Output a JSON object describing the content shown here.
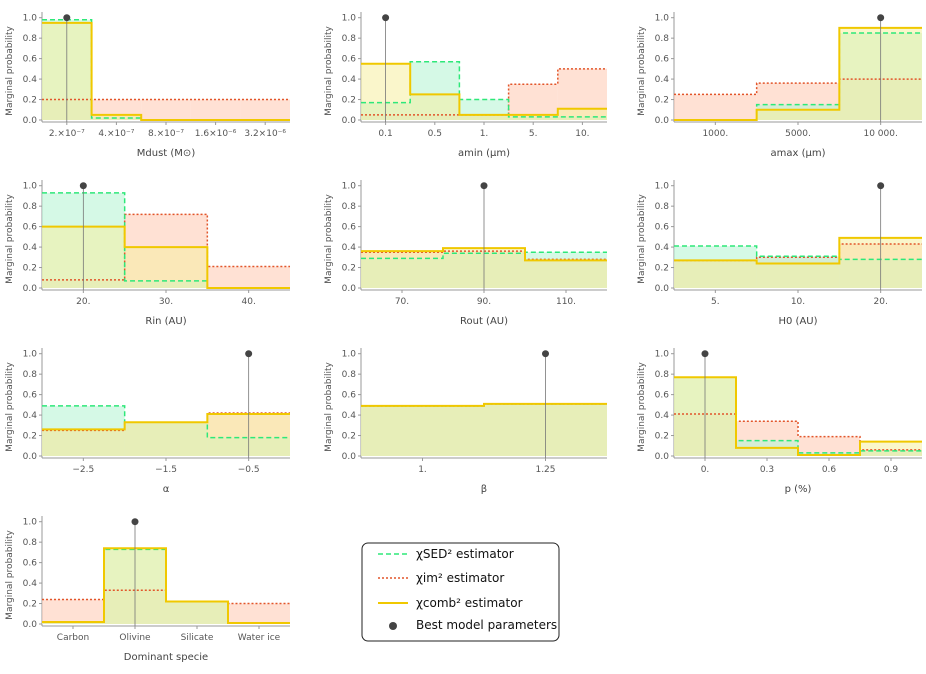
{
  "colors": {
    "sed_line": "#2ee879",
    "sed_fill": "#b9f5d6",
    "im_line": "#e2552a",
    "im_fill": "#ffcdb8",
    "comb_line": "#f0c800",
    "comb_fill": "#f6efa0",
    "best_point": "#444444",
    "axis": "#999999"
  },
  "legend": {
    "sed": "χSED² estimator",
    "im": "χim² estimator",
    "comb": "χcomb² estimator",
    "best": "Best model parameters"
  },
  "chart_data": [
    {
      "type": "bar",
      "ylabel": "Marginal probability",
      "xlabel": "Mdust (M⊙)",
      "xlim": [
        0,
        5
      ],
      "ylim": [
        0,
        1
      ],
      "ticks": [
        {
          "x": 0.5,
          "label": "2.×10⁻⁷"
        },
        {
          "x": 1.5,
          "label": "4.×10⁻⁷"
        },
        {
          "x": 2.5,
          "label": "8.×10⁻⁷"
        },
        {
          "x": 3.5,
          "label": "1.6×10⁻⁶"
        },
        {
          "x": 4.5,
          "label": "3.2×10⁻⁶"
        }
      ],
      "edges": [
        0,
        1,
        2,
        3,
        4,
        5
      ],
      "series": [
        {
          "name": "sed",
          "values": [
            0.98,
            0.02,
            0,
            0,
            0
          ]
        },
        {
          "name": "im",
          "values": [
            0.2,
            0.2,
            0.2,
            0.2,
            0.2
          ]
        },
        {
          "name": "comb",
          "values": [
            0.95,
            0.05,
            0,
            0,
            0
          ]
        }
      ],
      "best": 0.5
    },
    {
      "type": "bar",
      "ylabel": "Marginal probability",
      "xlabel": "amin (μm)",
      "xlim": [
        0,
        5
      ],
      "ylim": [
        0,
        1
      ],
      "ticks": [
        {
          "x": 0.5,
          "label": "0.1"
        },
        {
          "x": 1.5,
          "label": "0.5"
        },
        {
          "x": 2.5,
          "label": "1."
        },
        {
          "x": 3.5,
          "label": "5."
        },
        {
          "x": 4.5,
          "label": "10."
        }
      ],
      "edges": [
        0,
        1,
        2,
        3,
        4,
        5
      ],
      "series": [
        {
          "name": "sed",
          "values": [
            0.17,
            0.57,
            0.2,
            0.03,
            0.03
          ]
        },
        {
          "name": "im",
          "values": [
            0.05,
            0.05,
            0.05,
            0.35,
            0.5
          ]
        },
        {
          "name": "comb",
          "values": [
            0.55,
            0.25,
            0.05,
            0.05,
            0.11
          ]
        }
      ],
      "best": 0.5
    },
    {
      "type": "bar",
      "ylabel": "Marginal probability",
      "xlabel": "amax (μm)",
      "xlim": [
        0,
        3
      ],
      "ylim": [
        0,
        1
      ],
      "ticks": [
        {
          "x": 0.5,
          "label": "1000."
        },
        {
          "x": 1.5,
          "label": "5000."
        },
        {
          "x": 2.5,
          "label": "10 000."
        }
      ],
      "edges": [
        0,
        1,
        2,
        3
      ],
      "series": [
        {
          "name": "sed",
          "values": [
            0,
            0.15,
            0.85
          ]
        },
        {
          "name": "im",
          "values": [
            0.25,
            0.36,
            0.4
          ]
        },
        {
          "name": "comb",
          "values": [
            0,
            0.1,
            0.9
          ]
        }
      ],
      "best": 2.5
    },
    {
      "type": "bar",
      "ylabel": "Marginal probability",
      "xlabel": "Rin (AU)",
      "xlim": [
        15,
        45
      ],
      "ylim": [
        0,
        1
      ],
      "ticks": [
        {
          "x": 20,
          "label": "20."
        },
        {
          "x": 30,
          "label": "30."
        },
        {
          "x": 40,
          "label": "40."
        }
      ],
      "edges": [
        15,
        25,
        35,
        45
      ],
      "series": [
        {
          "name": "sed",
          "values": [
            0.93,
            0.07,
            0
          ]
        },
        {
          "name": "im",
          "values": [
            0.08,
            0.72,
            0.21
          ]
        },
        {
          "name": "comb",
          "values": [
            0.6,
            0.4,
            0
          ]
        }
      ],
      "best": 20
    },
    {
      "type": "bar",
      "ylabel": "Marginal probability",
      "xlabel": "Rout (AU)",
      "xlim": [
        60,
        120
      ],
      "ylim": [
        0,
        1
      ],
      "ticks": [
        {
          "x": 70,
          "label": "70."
        },
        {
          "x": 90,
          "label": "90."
        },
        {
          "x": 110,
          "label": "110."
        }
      ],
      "edges": [
        60,
        80,
        100,
        120
      ],
      "series": [
        {
          "name": "sed",
          "values": [
            0.29,
            0.34,
            0.35
          ]
        },
        {
          "name": "im",
          "values": [
            0.35,
            0.36,
            0.28
          ]
        },
        {
          "name": "comb",
          "values": [
            0.36,
            0.39,
            0.27
          ]
        }
      ],
      "best": 90
    },
    {
      "type": "bar",
      "ylabel": "Marginal probability",
      "xlabel": "H0 (AU)",
      "xlim": [
        0,
        3
      ],
      "ylim": [
        0,
        1
      ],
      "ticks": [
        {
          "x": 0.5,
          "label": "5."
        },
        {
          "x": 1.5,
          "label": "10."
        },
        {
          "x": 2.5,
          "label": "20."
        }
      ],
      "edges": [
        0,
        1,
        2,
        3
      ],
      "series": [
        {
          "name": "sed",
          "values": [
            0.41,
            0.31,
            0.28
          ]
        },
        {
          "name": "im",
          "values": [
            0.27,
            0.3,
            0.43
          ]
        },
        {
          "name": "comb",
          "values": [
            0.27,
            0.24,
            0.49
          ]
        }
      ],
      "best": 2.5
    },
    {
      "type": "bar",
      "ylabel": "Marginal probability",
      "xlabel": "α",
      "xlim": [
        -3,
        0
      ],
      "ylim": [
        0,
        1
      ],
      "ticks": [
        {
          "x": -2.5,
          "label": "−2.5"
        },
        {
          "x": -1.5,
          "label": "−1.5"
        },
        {
          "x": -0.5,
          "label": "−0.5"
        }
      ],
      "edges": [
        -3,
        -2,
        -1,
        0
      ],
      "series": [
        {
          "name": "sed",
          "values": [
            0.49,
            0.33,
            0.18
          ]
        },
        {
          "name": "im",
          "values": [
            0.25,
            0.33,
            0.42
          ]
        },
        {
          "name": "comb",
          "values": [
            0.26,
            0.33,
            0.41
          ]
        }
      ],
      "best": -0.5
    },
    {
      "type": "bar",
      "ylabel": "Marginal probability",
      "xlabel": "β",
      "xlim": [
        0.875,
        1.375
      ],
      "ylim": [
        0,
        1
      ],
      "ticks": [
        {
          "x": 1,
          "label": "1."
        },
        {
          "x": 1.25,
          "label": "1.25"
        }
      ],
      "edges": [
        0.875,
        1.125,
        1.375
      ],
      "series": [
        {
          "name": "sed",
          "values": [
            0.49,
            0.51
          ]
        },
        {
          "name": "im",
          "values": [
            0.49,
            0.51
          ]
        },
        {
          "name": "comb",
          "values": [
            0.49,
            0.51
          ]
        }
      ],
      "best": 1.25
    },
    {
      "type": "bar",
      "ylabel": "Marginal probability",
      "xlabel": "p (%)",
      "xlim": [
        -0.15,
        1.05
      ],
      "ylim": [
        0,
        1
      ],
      "ticks": [
        {
          "x": 0,
          "label": "0."
        },
        {
          "x": 0.3,
          "label": "0.3"
        },
        {
          "x": 0.6,
          "label": "0.6"
        },
        {
          "x": 0.9,
          "label": "0.9"
        }
      ],
      "edges": [
        -0.15,
        0.15,
        0.45,
        0.75,
        1.05
      ],
      "series": [
        {
          "name": "sed",
          "values": [
            0.77,
            0.15,
            0.03,
            0.05
          ]
        },
        {
          "name": "im",
          "values": [
            0.41,
            0.34,
            0.19,
            0.06
          ]
        },
        {
          "name": "comb",
          "values": [
            0.77,
            0.08,
            0.01,
            0.14
          ]
        }
      ],
      "best": 0
    },
    {
      "type": "bar",
      "ylabel": "Marginal probability",
      "xlabel": "Dominant specie",
      "xlim": [
        0,
        4
      ],
      "ylim": [
        0,
        1
      ],
      "ticks": [
        {
          "x": 0.5,
          "label": "Carbon"
        },
        {
          "x": 1.5,
          "label": "Olivine"
        },
        {
          "x": 2.5,
          "label": "Silicate"
        },
        {
          "x": 3.5,
          "label": "Water ice"
        }
      ],
      "edges": [
        0,
        1,
        2,
        3,
        4
      ],
      "series": [
        {
          "name": "sed",
          "values": [
            0.02,
            0.73,
            0.22,
            0.01
          ]
        },
        {
          "name": "im",
          "values": [
            0.24,
            0.33,
            0.22,
            0.2
          ]
        },
        {
          "name": "comb",
          "values": [
            0.02,
            0.74,
            0.22,
            0.01
          ]
        }
      ],
      "best": 1.5
    }
  ]
}
